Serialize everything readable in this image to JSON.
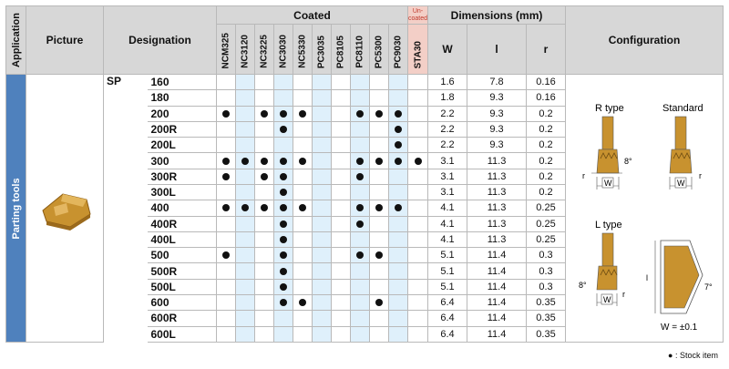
{
  "headers": {
    "application": "Application",
    "picture": "Picture",
    "designation": "Designation",
    "coated": "Coated",
    "uncoated": "Un-coated",
    "dimensions": "Dimensions (mm)",
    "configuration": "Configuration",
    "grades": [
      "NCM325",
      "NC3120",
      "NC3225",
      "NC3030",
      "NC5330",
      "PC3035",
      "PC8105",
      "PC8110",
      "PC5300",
      "PC9030",
      "STA30"
    ],
    "dims": [
      "W",
      "l",
      "r"
    ]
  },
  "application": "Parting tools",
  "series": "SP",
  "rows": [
    {
      "d": "160",
      "stock": [
        0,
        0,
        0,
        0,
        0,
        0,
        0,
        0,
        0,
        0,
        0
      ],
      "W": "1.6",
      "l": "7.8",
      "r": "0.16"
    },
    {
      "d": "180",
      "stock": [
        0,
        0,
        0,
        0,
        0,
        0,
        0,
        0,
        0,
        0,
        0
      ],
      "W": "1.8",
      "l": "9.3",
      "r": "0.16"
    },
    {
      "d": "200",
      "stock": [
        1,
        0,
        1,
        1,
        1,
        0,
        0,
        1,
        1,
        1,
        0
      ],
      "W": "2.2",
      "l": "9.3",
      "r": "0.2"
    },
    {
      "d": "200R",
      "stock": [
        0,
        0,
        0,
        1,
        0,
        0,
        0,
        0,
        0,
        1,
        0
      ],
      "W": "2.2",
      "l": "9.3",
      "r": "0.2"
    },
    {
      "d": "200L",
      "stock": [
        0,
        0,
        0,
        0,
        0,
        0,
        0,
        0,
        0,
        1,
        0
      ],
      "W": "2.2",
      "l": "9.3",
      "r": "0.2"
    },
    {
      "d": "300",
      "stock": [
        1,
        1,
        1,
        1,
        1,
        0,
        0,
        1,
        1,
        1,
        1
      ],
      "W": "3.1",
      "l": "11.3",
      "r": "0.2"
    },
    {
      "d": "300R",
      "stock": [
        1,
        0,
        1,
        1,
        0,
        0,
        0,
        1,
        0,
        0,
        0
      ],
      "W": "3.1",
      "l": "11.3",
      "r": "0.2"
    },
    {
      "d": "300L",
      "stock": [
        0,
        0,
        0,
        1,
        0,
        0,
        0,
        0,
        0,
        0,
        0
      ],
      "W": "3.1",
      "l": "11.3",
      "r": "0.2"
    },
    {
      "d": "400",
      "stock": [
        1,
        1,
        1,
        1,
        1,
        0,
        0,
        1,
        1,
        1,
        0
      ],
      "W": "4.1",
      "l": "11.3",
      "r": "0.25"
    },
    {
      "d": "400R",
      "stock": [
        0,
        0,
        0,
        1,
        0,
        0,
        0,
        1,
        0,
        0,
        0
      ],
      "W": "4.1",
      "l": "11.3",
      "r": "0.25"
    },
    {
      "d": "400L",
      "stock": [
        0,
        0,
        0,
        1,
        0,
        0,
        0,
        0,
        0,
        0,
        0
      ],
      "W": "4.1",
      "l": "11.3",
      "r": "0.25"
    },
    {
      "d": "500",
      "stock": [
        1,
        0,
        0,
        1,
        0,
        0,
        0,
        1,
        1,
        0,
        0
      ],
      "W": "5.1",
      "l": "11.4",
      "r": "0.3"
    },
    {
      "d": "500R",
      "stock": [
        0,
        0,
        0,
        1,
        0,
        0,
        0,
        0,
        0,
        0,
        0
      ],
      "W": "5.1",
      "l": "11.4",
      "r": "0.3"
    },
    {
      "d": "500L",
      "stock": [
        0,
        0,
        0,
        1,
        0,
        0,
        0,
        0,
        0,
        0,
        0
      ],
      "W": "5.1",
      "l": "11.4",
      "r": "0.3"
    },
    {
      "d": "600",
      "stock": [
        0,
        0,
        0,
        1,
        1,
        0,
        0,
        0,
        1,
        0,
        0
      ],
      "W": "6.4",
      "l": "11.4",
      "r": "0.35"
    },
    {
      "d": "600R",
      "stock": [
        0,
        0,
        0,
        0,
        0,
        0,
        0,
        0,
        0,
        0,
        0
      ],
      "W": "6.4",
      "l": "11.4",
      "r": "0.35"
    },
    {
      "d": "600L",
      "stock": [
        0,
        0,
        0,
        0,
        0,
        0,
        0,
        0,
        0,
        0,
        0
      ],
      "W": "6.4",
      "l": "11.4",
      "r": "0.35"
    }
  ],
  "config": {
    "r_type": "R type",
    "standard": "Standard",
    "l_type": "L type",
    "angle": "8°",
    "angle2": "7°",
    "w_tol": "W = ±0.1",
    "label_w": "W",
    "label_r": "r",
    "label_l": "l"
  },
  "footnote": "● : Stock item",
  "colors": {
    "header_gray": "#d7d7d7",
    "app_blue": "#4f81bd",
    "uncoated_pink": "#f3cfc7",
    "stripe_blue": "#dff0fb",
    "insert_gold": "#c8922f"
  }
}
